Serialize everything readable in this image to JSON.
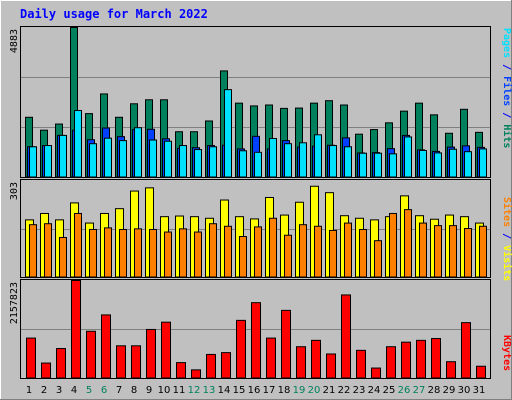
{
  "chart_data": {
    "type": "bar",
    "title": "Daily usage for March 2022",
    "categories": [
      "1",
      "2",
      "3",
      "4",
      "5",
      "6",
      "7",
      "8",
      "9",
      "10",
      "11",
      "12",
      "13",
      "14",
      "15",
      "16",
      "17",
      "18",
      "19",
      "20",
      "21",
      "22",
      "23",
      "24",
      "25",
      "26",
      "27",
      "28",
      "29",
      "30",
      "31"
    ],
    "weekend_days": [
      "5",
      "6",
      "12",
      "13",
      "19",
      "20",
      "26",
      "27"
    ],
    "colors": {
      "hits": "#00805c",
      "files": "#0040ff",
      "pages": "#00e0ff",
      "visits": "#ffff00",
      "sites": "#ff8000",
      "kbytes": "#ff0000",
      "weekday_label": "#000000",
      "weekend_label": "#00805c",
      "separator": "#0000ff"
    },
    "panels": [
      {
        "id": "top",
        "ymax_label": "4883",
        "ylim": [
          0,
          4883
        ],
        "legend": [
          "Pages",
          "Files",
          "Hits"
        ],
        "series": [
          {
            "name": "Hits",
            "color_key": "hits",
            "values": [
              1960,
              1540,
              1740,
              4883,
              2080,
              2720,
              1960,
              2400,
              2530,
              2530,
              1490,
              1490,
              1840,
              3470,
              2420,
              2330,
              2360,
              2250,
              2260,
              2420,
              2500,
              2360,
              1410,
              1560,
              1780,
              2160,
              2420,
              2040,
              1440,
              2220,
              1470
            ]
          },
          {
            "name": "Files",
            "color_key": "files",
            "values": [
              1000,
              1040,
              1370,
              1540,
              1230,
              1610,
              1330,
              1560,
              1570,
              1260,
              950,
              970,
              1040,
              1050,
              930,
              1340,
              930,
              1200,
              990,
              1020,
              1050,
              1290,
              800,
              810,
              940,
              1370,
              900,
              850,
              990,
              1030,
              980
            ]
          },
          {
            "name": "Pages",
            "color_key": "pages",
            "values": [
              1000,
              1040,
              1370,
              2180,
              1100,
              1280,
              1200,
              1620,
              1220,
              1180,
              1040,
              910,
              1000,
              2860,
              870,
              820,
              1270,
              1100,
              1130,
              1390,
              1040,
              1000,
              790,
              790,
              770,
              1320,
              880,
              800,
              920,
              840,
              930
            ]
          }
        ]
      },
      {
        "id": "middle",
        "ymax_label": "303",
        "ylim": [
          0,
          303
        ],
        "legend": [
          "Sites",
          "Visits"
        ],
        "series": [
          {
            "name": "Visits",
            "color_key": "visits",
            "values": [
              180,
              200,
              180,
              233,
              170,
              200,
              215,
              270,
              280,
              190,
              192,
              190,
              185,
              242,
              190,
              183,
              250,
              195,
              235,
              285,
              265,
              193,
              185,
              180,
              190,
              255,
              193,
              182,
              195,
              190,
              170
            ]
          },
          {
            "name": "Sites",
            "color_key": "sites",
            "values": [
              165,
              168,
              125,
              200,
              150,
              155,
              150,
              152,
              150,
              142,
              152,
              142,
              168,
              160,
              128,
              158,
              185,
              132,
              165,
              160,
              147,
              170,
              150,
              115,
              200,
              212,
              170,
              162,
              162,
              153,
              160
            ]
          }
        ]
      },
      {
        "id": "bottom",
        "ymax_label": "2157823",
        "ylim": [
          0,
          2157823
        ],
        "legend": [
          "KBytes"
        ],
        "series": [
          {
            "name": "KBytes",
            "color_key": "kbytes",
            "values": [
              890000,
              340000,
              660000,
              2157823,
              1040000,
              1400000,
              720000,
              720000,
              1080000,
              1240000,
              350000,
              190000,
              530000,
              570000,
              1280000,
              1670000,
              890000,
              1500000,
              700000,
              840000,
              540000,
              1840000,
              620000,
              230000,
              700000,
              800000,
              840000,
              880000,
              370000,
              1230000,
              270000
            ]
          }
        ]
      }
    ]
  }
}
